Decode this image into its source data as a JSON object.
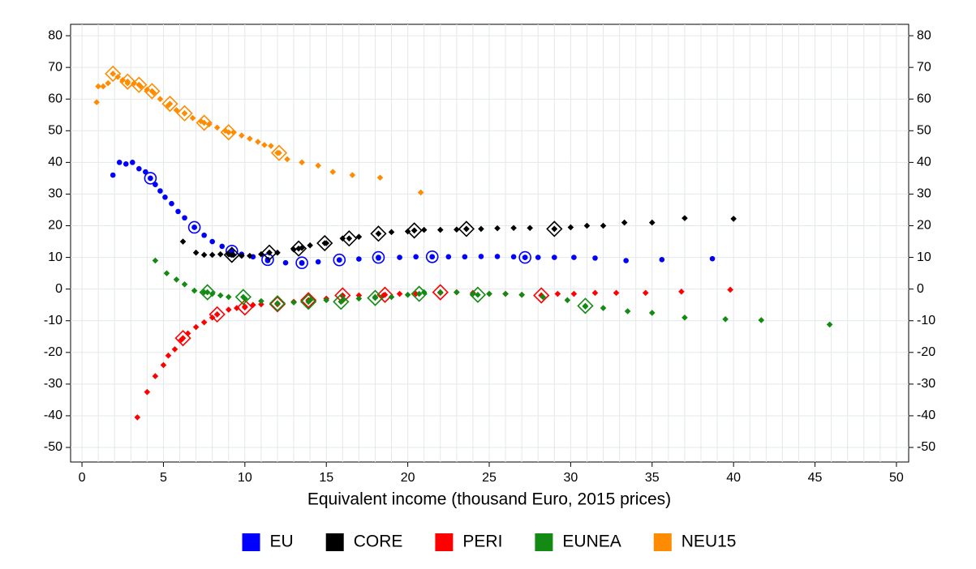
{
  "chart_data": {
    "type": "scatter",
    "x_label": "Equivalent income (thousand Euro, 2015 prices)",
    "xlim": [
      -0.7,
      50.75
    ],
    "ylim": [
      -54.6,
      83.6
    ],
    "y2lim": [
      -54.6,
      83.6
    ],
    "xticks": [
      0,
      5,
      10,
      15,
      20,
      25,
      30,
      35,
      40,
      45,
      50
    ],
    "yticks": [
      -50,
      -40,
      -30,
      -20,
      -10,
      0,
      10,
      20,
      30,
      40,
      50,
      60,
      70,
      80
    ],
    "y2ticks": [
      -50,
      -40,
      -30,
      -20,
      -10,
      0,
      10,
      20,
      30,
      40,
      50,
      60,
      70,
      80
    ],
    "x_grid_lines": [
      0,
      1,
      2,
      3,
      4,
      5,
      6,
      7,
      8,
      9,
      10,
      11,
      12,
      13,
      14,
      15,
      16,
      17,
      18,
      19,
      20,
      21,
      22,
      23,
      24,
      25,
      26,
      27,
      28,
      29,
      30,
      31,
      32,
      33,
      34,
      35,
      36,
      37,
      38,
      39,
      40,
      41,
      42,
      43,
      44,
      45,
      46,
      47,
      48,
      49,
      50
    ],
    "grid": true,
    "legend_position": "bottom",
    "series": [
      {
        "name": "EU",
        "color": "#0000ff",
        "marker": "circle",
        "x": [
          1.9,
          2.3,
          2.7,
          3.1,
          3.5,
          3.9,
          4.2,
          4.5,
          4.8,
          5.1,
          5.5,
          5.9,
          6.3,
          6.9,
          7.5,
          8,
          8.6,
          9.2,
          9.8,
          10.5,
          11.4,
          12.5,
          13.5,
          14.5,
          15.8,
          17,
          18.2,
          19.5,
          20.5,
          21.5,
          22.5,
          23.5,
          24.5,
          25.5,
          26.5,
          27.2,
          28,
          29,
          30.2,
          31.5,
          33.4,
          35.6,
          38.7
        ],
        "values": [
          36,
          40,
          39.5,
          40,
          38,
          37,
          35,
          33,
          31,
          29,
          27,
          24.5,
          22.5,
          19.5,
          17,
          15,
          13.5,
          12,
          11,
          10.2,
          9,
          8.3,
          8.2,
          8.6,
          9.2,
          9.5,
          9.8,
          10,
          10.2,
          10.2,
          10.2,
          10.2,
          10.3,
          10.3,
          10.2,
          10,
          10,
          10,
          10,
          9.8,
          9,
          9.3,
          9.6
        ],
        "big_markers": {
          "x": [
            4.2,
            6.9,
            9.2,
            11.4,
            13.5,
            15.8,
            18.2,
            21.5,
            27.2
          ],
          "y": [
            35,
            19.5,
            12,
            9.3,
            8.3,
            9.2,
            10,
            10.2,
            10
          ]
        }
      },
      {
        "name": "CORE",
        "color": "#000000",
        "marker": "diamond",
        "x": [
          6.2,
          7,
          7.5,
          8,
          8.5,
          9,
          9.3,
          9.8,
          10.3,
          11,
          11.5,
          12,
          13,
          13.5,
          14,
          15,
          16,
          17,
          18.2,
          19,
          20,
          20.4,
          21,
          22,
          23,
          23.6,
          24.5,
          25.5,
          26.5,
          27.5,
          29,
          30,
          31,
          32,
          33.3,
          35,
          37,
          40
        ],
        "values": [
          15,
          11.5,
          10.8,
          10.8,
          11,
          11,
          10.8,
          10.5,
          10.5,
          11,
          11.5,
          11.5,
          12.5,
          13,
          13.8,
          14.5,
          16,
          16.5,
          17.5,
          18,
          18.2,
          18.5,
          18.7,
          18.7,
          18.8,
          19,
          19,
          19.2,
          19.3,
          19.3,
          19,
          19.5,
          20,
          20,
          21,
          21,
          22.4,
          22.2
        ],
        "big_markers": {
          "x": [
            9.2,
            11.5,
            13.3,
            14.9,
            16.4,
            18.2,
            20.4,
            23.6,
            29
          ],
          "y": [
            10.8,
            11.5,
            12.8,
            14.5,
            16,
            17.5,
            18.5,
            19,
            19
          ]
        }
      },
      {
        "name": "PERI",
        "color": "#ff0000",
        "marker": "diamond",
        "x": [
          3.4,
          4,
          4.5,
          5,
          5.3,
          5.7,
          6.1,
          6.5,
          7,
          7.5,
          8,
          8.3,
          9,
          9.5,
          10,
          10.5,
          11,
          12,
          13,
          14,
          15,
          16,
          17,
          18.5,
          19.5,
          20.5,
          22,
          23,
          24,
          25,
          26,
          27,
          28.2,
          29.2,
          30.2,
          31.5,
          32.8,
          34.6,
          36.8,
          39.8
        ],
        "values": [
          -40.5,
          -32.5,
          -27.5,
          -24,
          -21,
          -19,
          -16,
          -14,
          -12,
          -10.5,
          -9,
          -8,
          -6.5,
          -6,
          -5.5,
          -5,
          -4.8,
          -4.5,
          -4,
          -3.5,
          -3,
          -2.2,
          -2,
          -2,
          -1.5,
          -1.5,
          -1.2,
          -1,
          -1.2,
          -1.5,
          -1.5,
          -1.8,
          -2,
          -1.5,
          -1.5,
          -1.2,
          -1.2,
          -1.2,
          -0.8,
          -0.2
        ],
        "big_markers": {
          "x": [
            6.2,
            8.3,
            10,
            12,
            13.9,
            16,
            18.6,
            22,
            28.2
          ],
          "y": [
            -15.5,
            -8,
            -5.8,
            -4.8,
            -3.5,
            -2,
            -1.8,
            -1,
            -2
          ]
        }
      },
      {
        "name": "EUNEA",
        "color": "#138a13",
        "marker": "diamond",
        "x": [
          4.5,
          5.2,
          5.8,
          6.3,
          6.9,
          7.5,
          8,
          8.5,
          9,
          10,
          11,
          12,
          13,
          14,
          15,
          16,
          17,
          18,
          19,
          20,
          21,
          22,
          23,
          24,
          25,
          26,
          27,
          28.3,
          29.8,
          30.9,
          32,
          33.5,
          35,
          37,
          39.5,
          41.7,
          45.9
        ],
        "values": [
          9,
          5,
          3,
          1.5,
          -0.5,
          -1,
          -1.5,
          -2,
          -2.5,
          -3,
          -3.8,
          -4.5,
          -4.2,
          -3.5,
          -3.5,
          -3.5,
          -3,
          -2.5,
          -2.5,
          -1.8,
          -1,
          -1,
          -1,
          -1.5,
          -1.5,
          -1.5,
          -1.8,
          -2.5,
          -3.5,
          -5.5,
          -6,
          -7,
          -7.5,
          -9,
          -9.5,
          -9.8,
          -11.2
        ],
        "big_markers": {
          "x": [
            7.7,
            9.9,
            12,
            13.9,
            15.9,
            18,
            20.7,
            24.3,
            30.9
          ],
          "y": [
            -1,
            -2.5,
            -4.5,
            -4,
            -4,
            -2.8,
            -1.5,
            -1.8,
            -5.3
          ]
        }
      },
      {
        "name": "NEU15",
        "color": "#ff8c00",
        "marker": "diamond",
        "x": [
          0.9,
          1,
          1.3,
          1.6,
          1.9,
          2.2,
          2.5,
          2.8,
          3.2,
          3.6,
          4,
          4.4,
          4.8,
          5.3,
          5.8,
          6.3,
          6.8,
          7.3,
          7.8,
          8.3,
          8.8,
          9.3,
          9.8,
          10.3,
          10.8,
          11.2,
          11.6,
          12,
          12.6,
          13.5,
          14.5,
          15.4,
          16.6,
          18.3,
          20.8
        ],
        "values": [
          59,
          64,
          64,
          65,
          68,
          67,
          66,
          65,
          65,
          64,
          63,
          62,
          60,
          58,
          56.5,
          55.5,
          54,
          53,
          52,
          51,
          50,
          49.5,
          48.5,
          47.5,
          46.5,
          45.5,
          45.2,
          43,
          41,
          40,
          39,
          37,
          36,
          35.2,
          30.5
        ],
        "big_markers": {
          "x": [
            1.9,
            2.8,
            3.5,
            4.3,
            5.4,
            6.3,
            7.5,
            9,
            12.1
          ],
          "y": [
            68,
            65.5,
            64.5,
            62.5,
            58.5,
            55.5,
            52.5,
            49.5,
            43
          ]
        }
      }
    ]
  }
}
